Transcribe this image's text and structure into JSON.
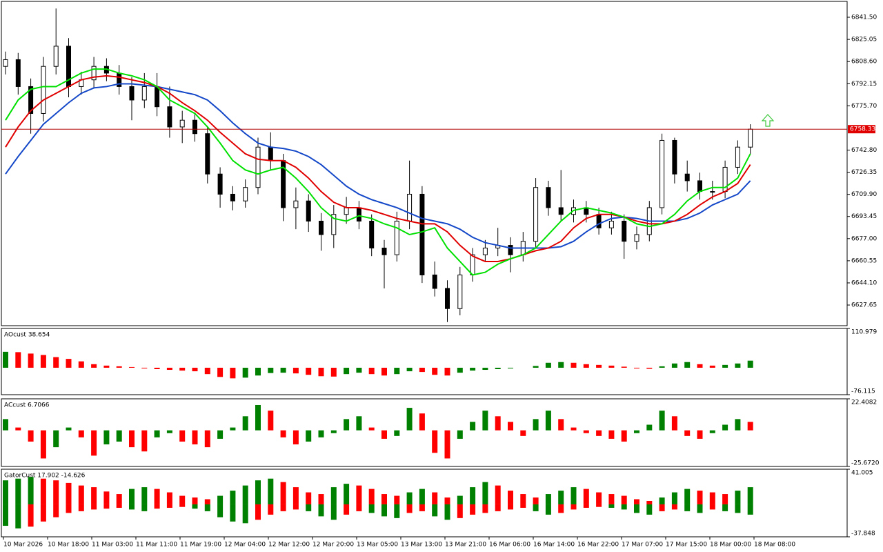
{
  "chart_data": [
    {
      "type": "candlestick",
      "open": [
        6805,
        6810,
        6790,
        6770,
        6805,
        6820,
        6790,
        6795,
        6805,
        6800,
        6790,
        6780,
        6790,
        6775,
        6760,
        6765,
        6755,
        6725,
        6710,
        6705,
        6715,
        6745,
        6735,
        6700,
        6705,
        6690,
        6680,
        6695,
        6700,
        6690,
        6670,
        6665,
        6690,
        6710,
        6650,
        6640,
        6625,
        6650,
        6665,
        6670,
        6672,
        6665,
        6675,
        6715,
        6700,
        6695,
        6700,
        6695,
        6685,
        6690,
        6675,
        6680,
        6700,
        6750,
        6725,
        6720,
        6712,
        6712,
        6730,
        6745
      ],
      "high": [
        6816,
        6815,
        6796,
        6812,
        6848,
        6826,
        6801,
        6812,
        6811,
        6806,
        6797,
        6800,
        6800,
        6790,
        6772,
        6770,
        6760,
        6730,
        6716,
        6721,
        6752,
        6756,
        6740,
        6715,
        6710,
        6696,
        6702,
        6708,
        6705,
        6695,
        6676,
        6697,
        6735,
        6716,
        6660,
        6646,
        6656,
        6670,
        6676,
        6685,
        6678,
        6682,
        6722,
        6720,
        6728,
        6706,
        6705,
        6700,
        6697,
        6695,
        6686,
        6705,
        6755,
        6752,
        6735,
        6726,
        6720,
        6735,
        6750,
        6762
      ],
      "low": [
        6799,
        6784,
        6755,
        6764,
        6799,
        6782,
        6784,
        6789,
        6794,
        6784,
        6765,
        6774,
        6768,
        6752,
        6748,
        6749,
        6718,
        6700,
        6698,
        6700,
        6710,
        6728,
        6690,
        6684,
        6682,
        6668,
        6670,
        6688,
        6684,
        6664,
        6640,
        6660,
        6684,
        6644,
        6634,
        6615,
        6620,
        6645,
        6660,
        6664,
        6652,
        6660,
        6670,
        6694,
        6690,
        6689,
        6689,
        6680,
        6680,
        6662,
        6669,
        6675,
        6695,
        6718,
        6712,
        6706,
        6706,
        6707,
        6725,
        6740
      ],
      "close": [
        6810,
        6790,
        6770,
        6805,
        6820,
        6790,
        6795,
        6805,
        6800,
        6790,
        6780,
        6790,
        6775,
        6760,
        6765,
        6755,
        6725,
        6710,
        6705,
        6715,
        6745,
        6735,
        6700,
        6705,
        6690,
        6680,
        6695,
        6700,
        6690,
        6670,
        6665,
        6690,
        6710,
        6650,
        6640,
        6625,
        6650,
        6665,
        6670,
        6672,
        6665,
        6675,
        6715,
        6700,
        6695,
        6700,
        6695,
        6685,
        6690,
        6675,
        6680,
        6700,
        6750,
        6725,
        6720,
        6712,
        6712,
        6730,
        6745,
        6758.33
      ],
      "series": [
        {
          "color": "#1448c8",
          "values": [
            6725,
            6738,
            6750,
            6762,
            6770,
            6778,
            6785,
            6789,
            6790,
            6792,
            6792,
            6791,
            6790,
            6788,
            6786,
            6784,
            6780,
            6772,
            6763,
            6755,
            6748,
            6745,
            6744,
            6742,
            6738,
            6732,
            6724,
            6716,
            6710,
            6706,
            6703,
            6700,
            6696,
            6692,
            6690,
            6688,
            6684,
            6678,
            6674,
            6672,
            6670,
            6670,
            6670,
            6670,
            6671,
            6675,
            6682,
            6688,
            6692,
            6693,
            6692,
            6690,
            6690,
            6690,
            6692,
            6696,
            6702,
            6706,
            6710,
            6720
          ]
        },
        {
          "color": "#e00000",
          "values": [
            6745,
            6760,
            6772,
            6780,
            6785,
            6790,
            6795,
            6797,
            6798,
            6797,
            6795,
            6793,
            6790,
            6785,
            6778,
            6772,
            6765,
            6756,
            6748,
            6740,
            6736,
            6735,
            6735,
            6730,
            6722,
            6712,
            6704,
            6700,
            6700,
            6698,
            6695,
            6692,
            6690,
            6688,
            6688,
            6682,
            6672,
            6664,
            6660,
            6660,
            6662,
            6665,
            6668,
            6670,
            6675,
            6685,
            6692,
            6695,
            6695,
            6693,
            6690,
            6688,
            6688,
            6690,
            6695,
            6702,
            6708,
            6712,
            6718,
            6732
          ]
        },
        {
          "color": "#00e000",
          "values": [
            6765,
            6780,
            6788,
            6790,
            6790,
            6795,
            6800,
            6803,
            6803,
            6800,
            6798,
            6795,
            6790,
            6780,
            6775,
            6770,
            6760,
            6748,
            6735,
            6728,
            6725,
            6728,
            6730,
            6722,
            6712,
            6700,
            6692,
            6690,
            6694,
            6692,
            6688,
            6685,
            6680,
            6682,
            6685,
            6670,
            6660,
            6650,
            6652,
            6658,
            6662,
            6665,
            6670,
            6680,
            6690,
            6698,
            6700,
            6698,
            6696,
            6693,
            6688,
            6686,
            6688,
            6695,
            6705,
            6712,
            6715,
            6715,
            6722,
            6740
          ]
        }
      ],
      "current_price": 6758.33,
      "ylim": [
        6612.3,
        6853.3
      ],
      "yticks": [
        {
          "value": 6841.5,
          "label": "6841.50"
        },
        6825.05,
        {
          "value": 6808.6,
          "label": "6808.60"
        },
        6792.15,
        {
          "value": 6775.7,
          "label": "6775.70"
        },
        {
          "value": 6742.8,
          "label": "6742.80"
        },
        6726.35,
        {
          "value": 6709.9,
          "label": "6709.90"
        },
        6693.45,
        {
          "value": 6677.0,
          "label": "6677.00"
        },
        6660.55,
        {
          "value": 6644.1,
          "label": "6644.10"
        },
        6627.65
      ],
      "time_labels": [
        "10 Mar 2026",
        "10 Mar 18:00",
        "11 Mar 03:00",
        "11 Mar 11:00",
        "11 Mar 19:00",
        "12 Mar 04:00",
        "12 Mar 12:00",
        "12 Mar 20:00",
        "13 Mar 05:00",
        "13 Mar 13:00",
        "13 Mar 21:00",
        "16 Mar 06:00",
        "16 Mar 14:00",
        "16 Mar 22:00",
        "17 Mar 07:00",
        "17 Mar 15:00",
        "18 Mar 00:00",
        "18 Mar 08:00"
      ]
    },
    {
      "type": "bar",
      "title": "AOcust 38.654",
      "up_color": "#008000",
      "down_color": "#ff0000",
      "series": [
        {
          "values": [
            45,
            44,
            40,
            36,
            30,
            25,
            18,
            10,
            6,
            4,
            2,
            -2,
            -4,
            -6,
            -8,
            -10,
            -18,
            -26,
            -30,
            -28,
            -22,
            -15,
            -14,
            -16,
            -20,
            -24,
            -25,
            -18,
            -14,
            -18,
            -22,
            -18,
            -10,
            -12,
            -20,
            -22,
            -14,
            -8,
            -6,
            -4,
            -2,
            0,
            5,
            14,
            16,
            14,
            10,
            8,
            6,
            3,
            -2,
            -3,
            4,
            12,
            16,
            10,
            6,
            8,
            12,
            20
          ]
        }
      ],
      "ylim": [
        -76.115,
        110.979
      ],
      "yticks": [
        -76.115,
        110.979
      ]
    },
    {
      "type": "bar",
      "title": "ACcust 6.7066",
      "up_color": "#008000",
      "down_color": "#ff0000",
      "series": [
        {
          "values": [
            8,
            2,
            -8,
            -20,
            -12,
            2,
            -5,
            -18,
            -10,
            -8,
            -12,
            -15,
            -5,
            -2,
            -8,
            -10,
            -12,
            -6,
            2,
            10,
            18,
            14,
            -5,
            -10,
            -8,
            -5,
            -2,
            8,
            10,
            2,
            -6,
            -4,
            16,
            12,
            -16,
            -20,
            -6,
            6,
            14,
            10,
            6,
            -4,
            8,
            14,
            8,
            2,
            -2,
            -4,
            -6,
            -8,
            -2,
            4,
            14,
            10,
            -4,
            -6,
            -2,
            4,
            8,
            6
          ]
        }
      ],
      "ylim": [
        -25.672,
        22.4082
      ],
      "yticks": [
        {
          "value": -25.672,
          "label": "-25.6720"
        },
        22.4082
      ]
    },
    {
      "type": "gator",
      "title": "GatorCust 17.902 -14.626",
      "up_color": "#008000",
      "down_color": "#ff0000",
      "series": [
        {
          "values": [
            28,
            30,
            32,
            30,
            28,
            25,
            22,
            20,
            15,
            12,
            18,
            20,
            18,
            14,
            10,
            8,
            6,
            10,
            16,
            22,
            28,
            30,
            26,
            20,
            14,
            12,
            20,
            24,
            22,
            18,
            12,
            10,
            14,
            18,
            14,
            8,
            10,
            20,
            26,
            22,
            16,
            12,
            8,
            12,
            16,
            20,
            18,
            14,
            12,
            10,
            6,
            4,
            8,
            14,
            18,
            16,
            14,
            12,
            16,
            20
          ]
        },
        {
          "values": [
            -25,
            -28,
            -26,
            -20,
            -15,
            -10,
            -8,
            -6,
            -5,
            -4,
            -6,
            -8,
            -5,
            -4,
            -3,
            -5,
            -8,
            -15,
            -20,
            -22,
            -18,
            -12,
            -8,
            -6,
            -8,
            -14,
            -18,
            -12,
            -8,
            -10,
            -14,
            -16,
            -10,
            -8,
            -14,
            -18,
            -16,
            -12,
            -10,
            -8,
            -6,
            -4,
            -8,
            -12,
            -10,
            -6,
            -4,
            -3,
            -4,
            -6,
            -10,
            -12,
            -8,
            -6,
            -8,
            -10,
            -6,
            -8,
            -10,
            -12
          ]
        }
      ],
      "ylim": [
        -37.848,
        41.005
      ],
      "yticks": [
        -37.848,
        41.005
      ]
    }
  ]
}
